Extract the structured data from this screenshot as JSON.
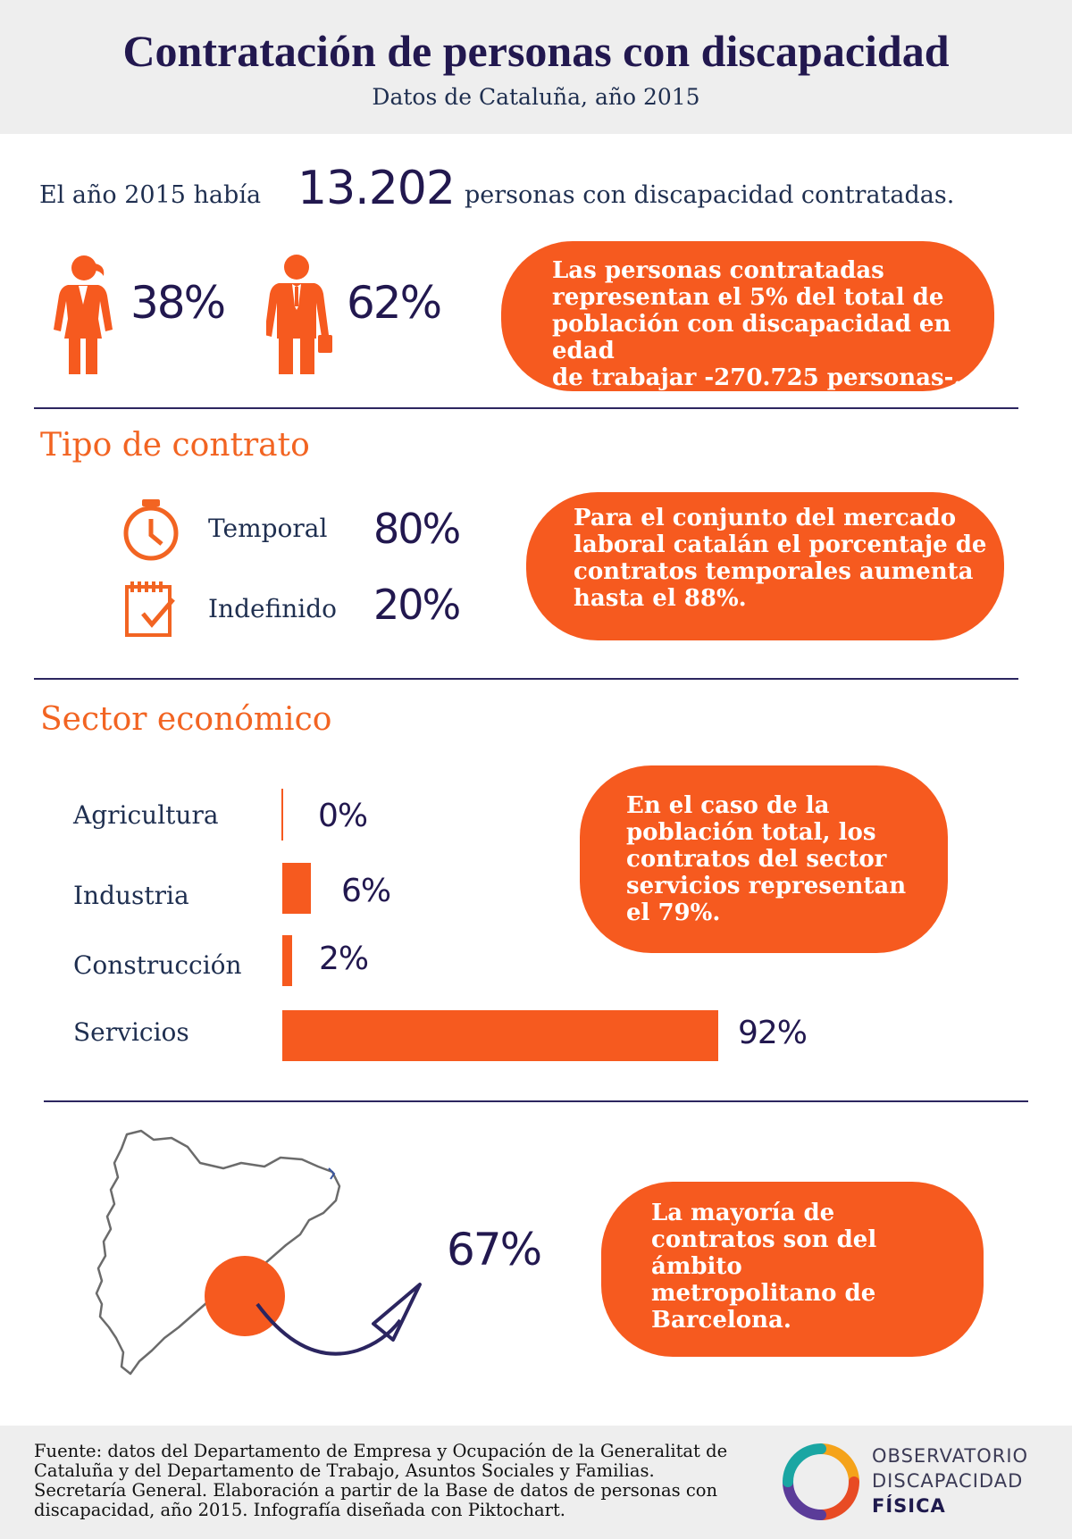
{
  "header": {
    "title": "Contratación de personas con discapacidad",
    "subtitle": "Datos de Cataluña, año 2015"
  },
  "intro": {
    "before": "El año 2015 había",
    "number": "13.202",
    "after": "personas con discapacidad contratadas."
  },
  "gender": {
    "women_pct": "38%",
    "men_pct": "62%"
  },
  "callouts": {
    "population": [
      "Las personas contratadas",
      "representan el 5% del total de",
      "población con discapacidad en edad",
      "de trabajar -270.725 personas-."
    ],
    "contract": [
      "Para el conjunto del mercado",
      "laboral catalán el porcentaje de",
      "contratos temporales aumenta",
      "hasta el 88%."
    ],
    "sector": [
      "En el caso de la",
      "población total, los",
      "contratos del sector",
      "servicios representan",
      "el 79%."
    ],
    "region": [
      "La mayoría de",
      "contratos son del",
      "ámbito",
      "metropolitano de",
      "Barcelona."
    ]
  },
  "contract_section": {
    "title": "Tipo de contrato",
    "items": [
      {
        "label": "Temporal",
        "value": "80%",
        "icon": "stopwatch-icon"
      },
      {
        "label": "Indefinido",
        "value": "20%",
        "icon": "calendar-check-icon"
      }
    ]
  },
  "sector_section": {
    "title": "Sector económico"
  },
  "chart_data": {
    "type": "bar",
    "orientation": "horizontal",
    "categories": [
      "Agricultura",
      "Industria",
      "Construcción",
      "Servicios"
    ],
    "values": [
      0,
      6,
      2,
      92
    ],
    "value_labels": [
      "0%",
      "6%",
      "2%",
      "92%"
    ],
    "xlim": [
      0,
      92
    ],
    "grid": false,
    "bar_color": "#f65a1f"
  },
  "region": {
    "value": "67%",
    "map": "catalonia-map"
  },
  "footer": {
    "source_lines": [
      "Fuente: datos del  Departamento de Empresa y Ocupación de la Generalitat de",
      "Cataluña y  del Departamento de Trabajo, Asuntos Sociales y Familias.",
      "Secretaría General. Elaboración a partir de la Base de datos de personas con",
      "discapacidad, año 2015. Infografía diseñada con Piktochart."
    ],
    "logo_lines": [
      "OBSERVATORIO",
      "DISCAPACIDAD",
      "FÍSICA"
    ]
  },
  "colors": {
    "accent": "#f65a1f",
    "title": "#22184f",
    "text": "#1f2f50",
    "header_bg": "#eeeeee"
  }
}
